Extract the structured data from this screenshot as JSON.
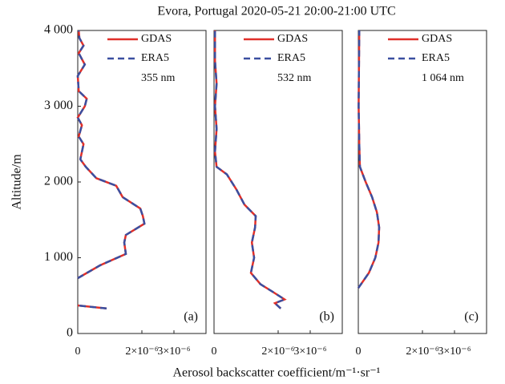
{
  "figure": {
    "title": "Evora, Portugal    2020-05-21    20:00-21:00 UTC",
    "xlabel": "Aerosol backscatter coefficient/m⁻¹·sr⁻¹",
    "ylabel": "Altitude/m"
  },
  "chart_data": [
    {
      "type": "line",
      "panel": "(a)",
      "annotation": "355 nm",
      "y": [
        330,
        370,
        500,
        730,
        900,
        1050,
        1200,
        1300,
        1450,
        1550,
        1650,
        1800,
        1950,
        2050,
        2200,
        2300,
        2500,
        2600,
        2750,
        2850,
        3000,
        3100,
        3200,
        3400,
        3550,
        3700,
        3800,
        3900,
        4000
      ],
      "series": [
        {
          "name": "GDAS",
          "color": "#e0302a",
          "linestyle": "solid",
          "values": [
            9e-07,
            0,
            null,
            0,
            7e-07,
            1.5e-06,
            1.45e-06,
            1.5e-06,
            2.08e-06,
            2.03e-06,
            1.95e-06,
            1.4e-06,
            1.2e-06,
            5.8e-07,
            2.5e-07,
            8e-08,
            1.8e-07,
            3e-08,
            1.3e-07,
            0,
            2.2e-07,
            2.8e-07,
            3e-08,
            0,
            2.2e-07,
            3e-08,
            1.8e-07,
            5e-08,
            3e-08
          ]
        },
        {
          "name": "ERA5",
          "color": "#3a4fa0",
          "linestyle": "dashed",
          "values": [
            9e-07,
            0,
            null,
            0,
            7e-07,
            1.5e-06,
            1.45e-06,
            1.5e-06,
            2.08e-06,
            2.03e-06,
            1.95e-06,
            1.4e-06,
            1.2e-06,
            5.8e-07,
            2.5e-07,
            8e-08,
            1.8e-07,
            3e-08,
            1.3e-07,
            0,
            2.2e-07,
            2.8e-07,
            3e-08,
            0,
            2.2e-07,
            3e-08,
            1.8e-07,
            5e-08,
            3e-08
          ]
        }
      ],
      "xlim": [
        0,
        4e-06
      ],
      "xticks": [
        0,
        {
          "value": 2e-06,
          "label": "2×10⁻⁶"
        },
        {
          "value": 3e-06,
          "label": "3×10⁻⁶"
        }
      ],
      "ylim": [
        0,
        4000
      ],
      "yticks": [
        0,
        {
          "value": 1000,
          "label": "1 000"
        },
        {
          "value": 2000,
          "label": "2 000"
        },
        {
          "value": 3000,
          "label": "3 000"
        },
        {
          "value": 4000,
          "label": "4 000"
        }
      ]
    },
    {
      "type": "line",
      "panel": "(b)",
      "annotation": "532 nm",
      "y": [
        330,
        400,
        450,
        550,
        650,
        800,
        1000,
        1200,
        1400,
        1550,
        1700,
        1900,
        2100,
        2200,
        2400,
        2700,
        3000,
        3300,
        3600,
        4000
      ],
      "series": [
        {
          "name": "GDAS",
          "color": "#e0302a",
          "linestyle": "solid",
          "values": [
            2.08e-06,
            1.9e-06,
            2.2e-06,
            1.83e-06,
            1.45e-06,
            1.15e-06,
            1.25e-06,
            1.18e-06,
            1.28e-06,
            1.3e-06,
            9.5e-07,
            7e-07,
            4e-07,
            8e-08,
            3e-08,
            8e-08,
            3e-08,
            8e-08,
            3e-08,
            3e-08
          ]
        },
        {
          "name": "ERA5",
          "color": "#3a4fa0",
          "linestyle": "dashed",
          "values": [
            2.08e-06,
            1.9e-06,
            2.2e-06,
            1.83e-06,
            1.45e-06,
            1.15e-06,
            1.25e-06,
            1.18e-06,
            1.28e-06,
            1.3e-06,
            9.5e-07,
            7e-07,
            4e-07,
            8e-08,
            3e-08,
            8e-08,
            3e-08,
            8e-08,
            3e-08,
            3e-08
          ]
        }
      ],
      "xlim": [
        0,
        4e-06
      ],
      "xticks": [
        0,
        {
          "value": 2e-06,
          "label": "2×10⁻⁶"
        },
        {
          "value": 3e-06,
          "label": "3×10⁻⁶"
        }
      ],
      "ylim": [
        0,
        4000
      ]
    },
    {
      "type": "line",
      "panel": "(c)",
      "annotation": "1 064 nm",
      "y": [
        600,
        800,
        1000,
        1200,
        1400,
        1600,
        1800,
        2000,
        2200,
        2500,
        3000,
        4000
      ],
      "series": [
        {
          "name": "GDAS",
          "color": "#e0302a",
          "linestyle": "solid",
          "values": [
            0,
            3.3e-07,
            5.3e-07,
            6.3e-07,
            6.5e-07,
            5.8e-07,
            4.3e-07,
            2.3e-07,
            5e-08,
            3e-08,
            1e-08,
            3e-08
          ]
        },
        {
          "name": "ERA5",
          "color": "#3a4fa0",
          "linestyle": "dashed",
          "values": [
            0,
            3.3e-07,
            5.3e-07,
            6.3e-07,
            6.5e-07,
            5.8e-07,
            4.3e-07,
            2.3e-07,
            5e-08,
            3e-08,
            1e-08,
            3e-08
          ]
        }
      ],
      "xlim": [
        0,
        4e-06
      ],
      "xticks": [
        0,
        {
          "value": 2e-06,
          "label": "2×10⁻⁶"
        },
        {
          "value": 3e-06,
          "label": "3×10⁻⁶"
        }
      ],
      "ylim": [
        0,
        4000
      ]
    }
  ]
}
